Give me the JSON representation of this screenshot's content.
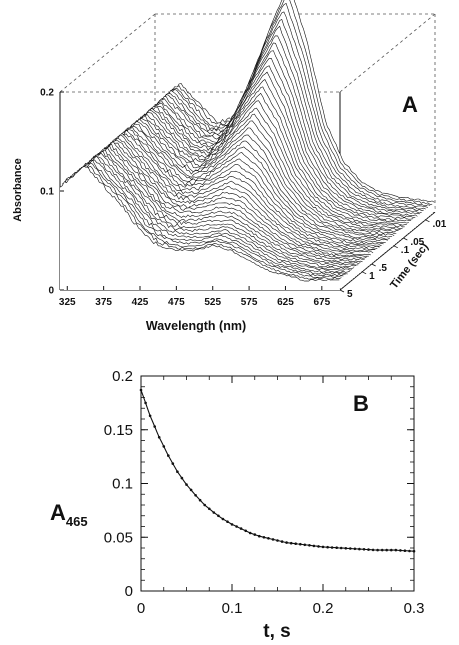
{
  "chart_data": [
    {
      "panel": "A",
      "type": "line",
      "panel_label": "A",
      "xlabel": "Wavelength (nm)",
      "ylabel": "Absorbance",
      "zlabel": "Time (sec)",
      "x_ticks": [
        "325",
        "375",
        "425",
        "475",
        "525",
        "575",
        "625",
        "675"
      ],
      "y_ticks": [
        "0",
        "0.1",
        "0.2"
      ],
      "z_ticks": [
        ".01",
        ".05",
        ".1",
        ".5",
        "1",
        "5"
      ],
      "xlim": [
        315,
        700
      ],
      "ylim": [
        0,
        0.2
      ],
      "grid": false,
      "style": "3D waterfall of absorbance spectra vs time",
      "series": [
        {
          "name": "",
          "time": 0.005,
          "x": [
            315,
            350,
            400,
            425,
            450,
            475,
            500,
            525,
            550,
            575,
            600,
            625,
            650,
            700
          ],
          "values": [
            0.105,
            0.13,
            0.09,
            0.095,
            0.14,
            0.19,
            0.23,
            0.17,
            0.09,
            0.05,
            0.03,
            0.02,
            0.015,
            0.01
          ]
        },
        {
          "name": "",
          "time": 5,
          "x": [
            315,
            350,
            400,
            425,
            450,
            475,
            500,
            525,
            550,
            575,
            600,
            625,
            650,
            700
          ],
          "values": [
            0.105,
            0.125,
            0.085,
            0.06,
            0.045,
            0.04,
            0.04,
            0.045,
            0.04,
            0.03,
            0.02,
            0.015,
            0.01,
            0.01
          ]
        }
      ]
    },
    {
      "panel": "B",
      "type": "line",
      "panel_label": "B",
      "xlabel": "t, s",
      "ylabel": "A",
      "ylabel_subscript": "465",
      "x_ticks": [
        "0",
        "0.1",
        "0.2",
        "0.3"
      ],
      "y_ticks": [
        "0",
        "0.05",
        "0.1",
        "0.15",
        "0.2"
      ],
      "xlim": [
        0,
        0.3
      ],
      "ylim": [
        0,
        0.2
      ],
      "grid": false,
      "series": [
        {
          "name": "",
          "x": [
            0.0,
            0.01,
            0.02,
            0.03,
            0.04,
            0.05,
            0.06,
            0.07,
            0.08,
            0.09,
            0.1,
            0.11,
            0.12,
            0.13,
            0.14,
            0.15,
            0.16,
            0.17,
            0.18,
            0.19,
            0.2,
            0.22,
            0.24,
            0.26,
            0.28,
            0.3
          ],
          "values": [
            0.187,
            0.163,
            0.143,
            0.126,
            0.111,
            0.099,
            0.089,
            0.08,
            0.073,
            0.067,
            0.062,
            0.058,
            0.054,
            0.051,
            0.049,
            0.047,
            0.045,
            0.044,
            0.043,
            0.042,
            0.041,
            0.04,
            0.039,
            0.038,
            0.038,
            0.037
          ]
        }
      ]
    }
  ]
}
